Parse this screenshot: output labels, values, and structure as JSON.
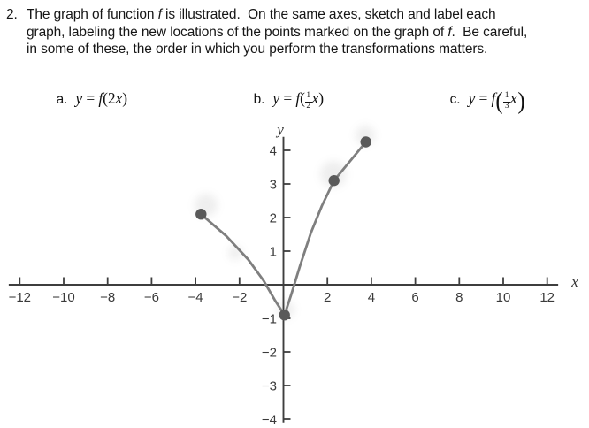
{
  "problem": {
    "number": "2.",
    "lines": [
      [
        {
          "t": "The graph of function "
        },
        {
          "it": "f"
        },
        {
          "t": " is illustrated.  On the same axes, sketch and label each"
        }
      ],
      [
        {
          "t": "graph, labeling the new locations of the points marked on the graph of "
        },
        {
          "it": "f"
        },
        {
          "t": ".  Be careful,"
        }
      ],
      [
        {
          "t": "in some of these, the order in which you perform the transformations matters."
        }
      ]
    ],
    "parts": [
      {
        "label": "a.",
        "formula": [
          {
            "it": "y"
          },
          {
            "t": " = "
          },
          {
            "it": "f"
          },
          {
            "t": "(2"
          },
          {
            "it": "x"
          },
          {
            "t": ")"
          }
        ]
      },
      {
        "label": "b.",
        "formula": [
          {
            "it": "y"
          },
          {
            "t": " = "
          },
          {
            "it": "f"
          },
          {
            "t": "("
          },
          {
            "frac": [
              "1",
              "2"
            ]
          },
          {
            "it": "x"
          },
          {
            "t": ")"
          }
        ]
      },
      {
        "label": "c.",
        "formula": [
          {
            "it": "y"
          },
          {
            "t": " = "
          },
          {
            "it": "f"
          },
          {
            "bigp": "("
          },
          {
            "frac": [
              "1",
              "3"
            ]
          },
          {
            "it": "x"
          },
          {
            "bigp": ")"
          }
        ]
      }
    ]
  },
  "chart_data": {
    "type": "line",
    "title": "",
    "xlabel": "x",
    "ylabel": "y",
    "xlim": [
      -12.5,
      12.5
    ],
    "ylim": [
      -4.1,
      4.4
    ],
    "x_ticks": [
      -12,
      -10,
      -8,
      -6,
      -4,
      -2,
      2,
      4,
      6,
      8,
      10,
      12
    ],
    "y_ticks": [
      -4,
      -3,
      -2,
      -1,
      1,
      2,
      3,
      4
    ],
    "grid": false,
    "legend_position": "none",
    "axis_color": "#3e3e3e",
    "tick_label_color": "#3a3a3a",
    "curve_color": "#7f7f7f",
    "point_color": "#5a5a5a",
    "marked_points": [
      [
        -4,
        2
      ],
      [
        0,
        -1
      ],
      [
        2,
        3
      ],
      [
        4,
        4
      ]
    ],
    "series": [
      {
        "name": "f",
        "drawn_points": [
          [
            -3.75,
            2.1
          ],
          [
            -2.6,
            1.45
          ],
          [
            -1.6,
            0.75
          ],
          [
            -0.9,
            0.12
          ],
          [
            -0.4,
            -0.45
          ],
          [
            0.05,
            -0.9
          ],
          [
            0.35,
            -0.3
          ],
          [
            0.75,
            0.55
          ],
          [
            1.25,
            1.55
          ],
          [
            1.75,
            2.35
          ],
          [
            2.3,
            3.1
          ],
          [
            3.75,
            4.25
          ]
        ],
        "marked_drawn_points": [
          [
            -3.75,
            2.1
          ],
          [
            0.05,
            -0.9
          ],
          [
            2.3,
            3.1
          ],
          [
            3.75,
            4.25
          ]
        ]
      }
    ]
  }
}
